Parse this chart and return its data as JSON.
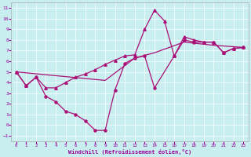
{
  "xlabel": "Windchill (Refroidissement éolien,°C)",
  "bg_color": "#c8eef0",
  "grid_color": "#ffffff",
  "line_color": "#aa1177",
  "xlim": [
    -0.5,
    23.5
  ],
  "ylim": [
    -1.5,
    11.5
  ],
  "xticks": [
    0,
    1,
    2,
    3,
    4,
    5,
    6,
    7,
    8,
    9,
    10,
    11,
    12,
    13,
    14,
    15,
    16,
    17,
    18,
    19,
    20,
    21,
    22,
    23
  ],
  "yticks": [
    -1,
    0,
    1,
    2,
    3,
    4,
    5,
    6,
    7,
    8,
    9,
    10,
    11
  ],
  "curve1_x": [
    0,
    1,
    2,
    3,
    4,
    5,
    6,
    7,
    8,
    9,
    10,
    11,
    12,
    13,
    14,
    16,
    17,
    18,
    19,
    20,
    21,
    22,
    23
  ],
  "curve1_y": [
    5.0,
    3.7,
    4.5,
    2.7,
    2.2,
    1.3,
    1.0,
    0.4,
    -0.5,
    -0.5,
    3.3,
    5.8,
    6.3,
    6.5,
    3.5,
    6.5,
    8.0,
    7.8,
    7.8,
    7.8,
    6.8,
    7.2,
    7.3
  ],
  "curve2_x": [
    0,
    1,
    2,
    3,
    4,
    5,
    6,
    7,
    8,
    9,
    10,
    11,
    12,
    13,
    14,
    15,
    16,
    17,
    18,
    19,
    20,
    21,
    22,
    23
  ],
  "curve2_y": [
    5.0,
    3.7,
    4.5,
    3.5,
    3.5,
    4.0,
    4.5,
    4.8,
    5.2,
    5.7,
    6.1,
    6.5,
    6.6,
    9.0,
    10.8,
    9.8,
    6.5,
    8.3,
    8.0,
    7.8,
    7.8,
    6.8,
    7.2,
    7.3
  ],
  "curve3_x": [
    0,
    9,
    12,
    14,
    17,
    20,
    23
  ],
  "curve3_y": [
    5.0,
    4.2,
    6.3,
    6.8,
    7.8,
    7.5,
    7.3
  ]
}
